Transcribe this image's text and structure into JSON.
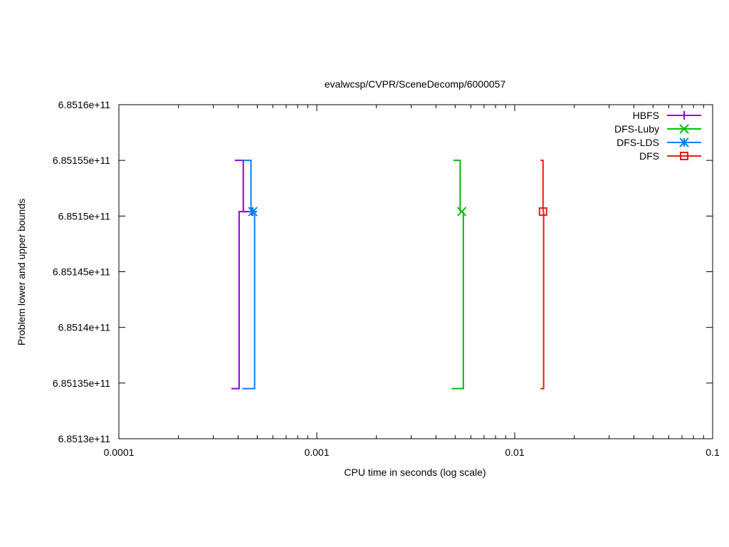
{
  "chart_data": {
    "type": "line",
    "title": "evalwcsp/CVPR/SceneDecomp/6000057",
    "xlabel": "CPU time in seconds (log scale)",
    "ylabel": "Problem lower and upper bounds",
    "xscale": "log",
    "xlim": [
      0.0001,
      0.1
    ],
    "ylim": [
      685130000000,
      685160000000
    ],
    "x_ticks": [
      {
        "value": 0.0001,
        "label": "0.0001"
      },
      {
        "value": 0.001,
        "label": "0.001"
      },
      {
        "value": 0.01,
        "label": "0.01"
      },
      {
        "value": 0.1,
        "label": "0.1"
      }
    ],
    "y_ticks": [
      {
        "value": 685130000000,
        "label": "6.8513e+11"
      },
      {
        "value": 685135000000,
        "label": "6.85135e+11"
      },
      {
        "value": 685140000000,
        "label": "6.8514e+11"
      },
      {
        "value": 685145000000,
        "label": "6.85145e+11"
      },
      {
        "value": 685150000000,
        "label": "6.8515e+11"
      },
      {
        "value": 685155000000,
        "label": "6.85155e+11"
      },
      {
        "value": 685160000000,
        "label": "6.8516e+11"
      }
    ],
    "grid": false,
    "legend_position": "top-right",
    "series": [
      {
        "name": "HBFS",
        "color": "#9400d3",
        "marker": "plus",
        "upper": [
          [
            0.000385,
            685155000000
          ],
          [
            0.000425,
            685155000000
          ],
          [
            0.000425,
            685150400000
          ],
          [
            0.00047,
            685150400000
          ]
        ],
        "lower": [
          [
            0.00037,
            685134500000
          ],
          [
            0.000405,
            685134500000
          ],
          [
            0.000405,
            685150400000
          ],
          [
            0.00047,
            685150400000
          ]
        ],
        "marker_points": [
          [
            0.00047,
            685150400000
          ]
        ]
      },
      {
        "name": "DFS-Luby",
        "color": "#00bf00",
        "marker": "x",
        "upper": [
          [
            0.0049,
            685155000000
          ],
          [
            0.0053,
            685155000000
          ],
          [
            0.0053,
            685150400000
          ]
        ],
        "lower": [
          [
            0.0048,
            685134500000
          ],
          [
            0.0055,
            685134500000
          ],
          [
            0.0055,
            685150400000
          ]
        ],
        "marker_points": [
          [
            0.0054,
            685150400000
          ]
        ]
      },
      {
        "name": "DFS-LDS",
        "color": "#0080ff",
        "marker": "star",
        "upper": [
          [
            0.00042,
            685155000000
          ],
          [
            0.000465,
            685155000000
          ],
          [
            0.000465,
            685150400000
          ]
        ],
        "lower": [
          [
            0.00042,
            685134500000
          ],
          [
            0.000485,
            685134500000
          ],
          [
            0.000485,
            685150400000
          ]
        ],
        "marker_points": [
          [
            0.000475,
            685150400000
          ]
        ]
      },
      {
        "name": "DFS",
        "color": "#e51e10",
        "marker": "square",
        "upper": [
          [
            0.0135,
            685155000000
          ],
          [
            0.0139,
            685155000000
          ],
          [
            0.0139,
            685150400000
          ]
        ],
        "lower": [
          [
            0.0135,
            685134500000
          ],
          [
            0.014,
            685134500000
          ],
          [
            0.014,
            685150400000
          ]
        ],
        "marker_points": [
          [
            0.0139,
            685150400000
          ]
        ]
      }
    ]
  }
}
